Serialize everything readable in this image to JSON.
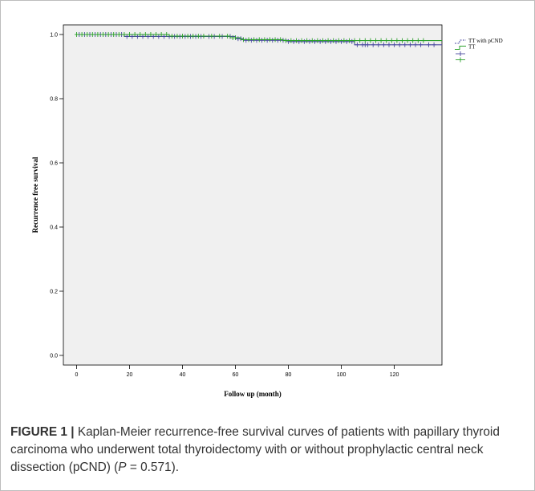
{
  "chart_data": {
    "type": "line",
    "subtype": "kaplan-meier step curves with censor marks",
    "xlabel": "Follow up (month)",
    "ylabel": "Recurrence free survival",
    "xlim": [
      -5,
      138
    ],
    "ylim": [
      -0.03,
      1.03
    ],
    "x_ticks": [
      0,
      20,
      40,
      60,
      80,
      100,
      120
    ],
    "y_ticks": [
      0.0,
      0.2,
      0.4,
      0.6,
      0.8,
      1.0
    ],
    "y_tick_labels": [
      "0.0",
      "0.2",
      "0.4",
      "0.6",
      "0.8",
      "1.0"
    ],
    "plot_background": "#f0f0f0",
    "grid": false,
    "legend_position": "right",
    "legend": [
      {
        "label": "TT with pCND",
        "kind": "line",
        "color": "#4a4aa0"
      },
      {
        "label": "TT",
        "kind": "line",
        "color": "#2aa02a"
      },
      {
        "label": "",
        "kind": "censor",
        "color": "#4a4aa0"
      },
      {
        "label": "",
        "kind": "censor",
        "color": "#2aa02a"
      }
    ],
    "series": [
      {
        "name": "TT with pCND",
        "color": "#4a4aa0",
        "steps": [
          [
            0,
            1.0
          ],
          [
            18,
            0.994
          ],
          [
            60,
            0.987
          ],
          [
            63,
            0.982
          ],
          [
            80,
            0.978
          ],
          [
            105,
            0.968
          ],
          [
            138,
            0.968
          ]
        ],
        "censored": [
          1,
          3,
          5,
          7,
          9,
          11,
          13,
          15,
          17,
          19,
          21,
          23,
          25,
          27,
          29,
          31,
          33,
          35,
          37,
          39,
          41,
          43,
          45,
          47,
          50,
          52,
          55,
          58,
          61,
          62,
          64,
          66,
          68,
          70,
          72,
          74,
          76,
          78,
          80,
          82,
          84,
          86,
          88,
          90,
          92,
          94,
          96,
          98,
          100,
          102,
          104,
          106,
          108,
          109,
          110,
          112,
          114,
          116,
          118,
          120,
          122,
          124,
          126,
          128,
          130,
          133,
          135
        ]
      },
      {
        "name": "TT",
        "color": "#2aa02a",
        "steps": [
          [
            0,
            1.0
          ],
          [
            35,
            0.995
          ],
          [
            58,
            0.99
          ],
          [
            62,
            0.984
          ],
          [
            78,
            0.981
          ],
          [
            138,
            0.981
          ]
        ],
        "censored": [
          0,
          2,
          4,
          6,
          8,
          10,
          12,
          14,
          16,
          18,
          20,
          22,
          24,
          26,
          28,
          30,
          32,
          34,
          36,
          38,
          40,
          42,
          44,
          46,
          48,
          51,
          54,
          57,
          59,
          60,
          63,
          65,
          67,
          69,
          71,
          73,
          75,
          77,
          79,
          81,
          83,
          85,
          87,
          89,
          91,
          93,
          95,
          97,
          99,
          101,
          103,
          105,
          107,
          109,
          111,
          113,
          115,
          117,
          119,
          121,
          123,
          125,
          127,
          129,
          131
        ]
      }
    ]
  },
  "caption": {
    "label": "FIGURE 1 |",
    "text_before_p": " Kaplan-Meier recurrence-free survival curves of patients with papillary thyroid carcinoma who underwent total thyroidectomy with or without prophylactic central neck dissection (pCND) (",
    "p_symbol": "P",
    "text_after_p": " = 0.571)."
  }
}
